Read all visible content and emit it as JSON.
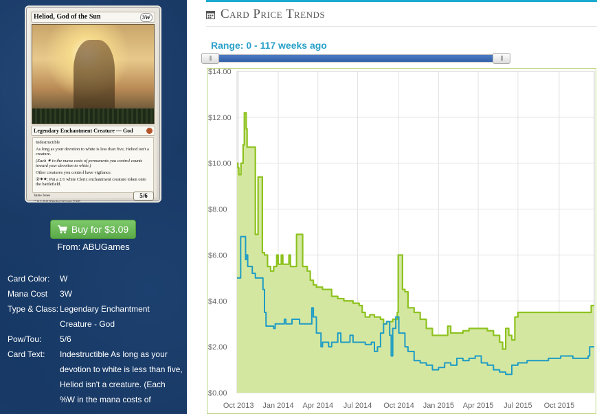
{
  "card": {
    "name": "Heliod, God of the Sun",
    "mana_symbols": "3W",
    "type_line": "Legendary Enchantment Creature — God",
    "rules": [
      "Indestructible",
      "As long as your devotion to white is less than five, Heliod isn't a creature.",
      "(Each ✷ in the mana costs of permanents you control counts toward your devotion to white.)",
      "Other creatures you control have vigilance.",
      "②✷✷: Put a 2/1 white Cleric enchantment creature token onto the battlefield."
    ],
    "power_toughness": "5/6",
    "artist": "Jaime Jones",
    "copyright": "™ & © 2013 Wizards of the Coast 17/249"
  },
  "buy": {
    "label": "Buy for $3.09",
    "icon": "shopping-cart-icon",
    "from_label": "From:",
    "vendor": "ABUGames"
  },
  "details": [
    {
      "label": "Card Color:",
      "value": "W"
    },
    {
      "label": "Mana Cost",
      "value": "3W"
    },
    {
      "label": "Type & Class:",
      "value": "Legendary Enchantment Creature - God"
    },
    {
      "label": "Pow/Tou:",
      "value": "5/6"
    },
    {
      "label": "Card Text:",
      "value": "Indestructible As long as your devotion to white is less than five, Heliod isn't a creature. (Each %W in the mana costs of"
    }
  ],
  "panel": {
    "title": "Card Price Trends",
    "icon": "calendar-icon",
    "accent_color": "#1aa9cf"
  },
  "range": {
    "label": "Range: 0 - 117 weeks ago",
    "min": 0,
    "max": 117,
    "selected_fraction": 1.0
  },
  "chart_data": {
    "type": "area",
    "title": "",
    "xlabel": "",
    "ylabel": "",
    "x_ticks": [
      "Oct 2013",
      "Jan 2014",
      "Apr 2014",
      "Jul 2014",
      "Oct 2014",
      "Jan 2015",
      "Apr 2015",
      "Jul 2015",
      "Oct 2015"
    ],
    "y_ticks": [
      "$0.00",
      "$2.00",
      "$4.00",
      "$6.00",
      "$8.00",
      "$10.00",
      "$12.00",
      "$14.00"
    ],
    "ylim": [
      0,
      14
    ],
    "xlim": [
      0,
      117
    ],
    "grid": true,
    "colors": {
      "series1": "#8dc21f",
      "series1_fill": "#d4e7a1",
      "series2": "#1e9cc4",
      "plot_border": "#b8d27a"
    },
    "series": [
      {
        "points": [
          [
            0,
            10.0
          ],
          [
            0.3,
            9.8
          ],
          [
            0.6,
            9.5
          ],
          [
            1.0,
            9.5
          ],
          [
            1.3,
            10.0
          ],
          [
            2.0,
            10.8
          ],
          [
            2.4,
            12.2
          ],
          [
            2.7,
            12.2
          ],
          [
            3.0,
            11.5
          ],
          [
            3.3,
            10.7
          ],
          [
            5.5,
            10.7
          ],
          [
            6.0,
            6.9
          ],
          [
            6.5,
            6.9
          ],
          [
            6.9,
            9.4
          ],
          [
            7.9,
            9.4
          ],
          [
            8.3,
            6.1
          ],
          [
            9.0,
            6.0
          ],
          [
            10.0,
            5.5
          ],
          [
            11.0,
            5.3
          ],
          [
            12.0,
            5.5
          ],
          [
            13.0,
            6.0
          ],
          [
            13.5,
            5.6
          ],
          [
            14.0,
            5.6
          ],
          [
            14.5,
            6.0
          ],
          [
            15.0,
            5.6
          ],
          [
            16.5,
            5.6
          ],
          [
            17.0,
            6.0
          ],
          [
            17.5,
            5.5
          ],
          [
            19.0,
            5.5
          ],
          [
            19.5,
            6.9
          ],
          [
            21.0,
            6.9
          ],
          [
            21.5,
            5.5
          ],
          [
            23.0,
            5.3
          ],
          [
            24.0,
            4.9
          ],
          [
            25.0,
            4.7
          ],
          [
            26.0,
            4.6
          ],
          [
            28.0,
            4.5
          ],
          [
            31.0,
            4.2
          ],
          [
            33.0,
            4.1
          ],
          [
            35.0,
            4.0
          ],
          [
            38.0,
            3.9
          ],
          [
            40.0,
            3.8
          ],
          [
            41.0,
            3.5
          ],
          [
            42.0,
            3.3
          ],
          [
            43.5,
            3.4
          ],
          [
            45.0,
            3.3
          ],
          [
            47.0,
            3.2
          ],
          [
            48.0,
            3.0
          ],
          [
            49.0,
            3.1
          ],
          [
            51.0,
            3.2
          ],
          [
            52.5,
            3.5
          ],
          [
            52.8,
            6.0
          ],
          [
            54.0,
            6.0
          ],
          [
            54.2,
            4.5
          ],
          [
            55.0,
            4.4
          ],
          [
            56.0,
            3.7
          ],
          [
            58.0,
            3.5
          ],
          [
            60.0,
            3.2
          ],
          [
            62.0,
            2.8
          ],
          [
            64.0,
            2.5
          ],
          [
            66.0,
            2.5
          ],
          [
            68.0,
            2.5
          ],
          [
            69.0,
            2.9
          ],
          [
            70.0,
            2.6
          ],
          [
            72.0,
            2.6
          ],
          [
            74.0,
            2.7
          ],
          [
            76.0,
            2.8
          ],
          [
            79.0,
            2.8
          ],
          [
            82.0,
            2.7
          ],
          [
            84.0,
            2.5
          ],
          [
            86.0,
            2.2
          ],
          [
            87.0,
            1.9
          ],
          [
            88.0,
            2.8
          ],
          [
            89.0,
            2.5
          ],
          [
            90.0,
            2.3
          ],
          [
            91.0,
            3.3
          ],
          [
            92.0,
            3.5
          ],
          [
            95.0,
            3.5
          ],
          [
            100.0,
            3.5
          ],
          [
            105.0,
            3.5
          ],
          [
            110.0,
            3.5
          ],
          [
            115.5,
            3.5
          ],
          [
            116.0,
            3.8
          ],
          [
            117.0,
            3.8
          ]
        ]
      },
      {
        "points": [
          [
            0,
            5.0
          ],
          [
            1.0,
            5.0
          ],
          [
            1.2,
            6.8
          ],
          [
            2.5,
            6.8
          ],
          [
            2.8,
            5.8
          ],
          [
            3.0,
            6.0
          ],
          [
            3.5,
            5.5
          ],
          [
            5.0,
            5.2
          ],
          [
            6.0,
            5.0
          ],
          [
            8.0,
            5.0
          ],
          [
            8.5,
            4.5
          ],
          [
            9.0,
            3.5
          ],
          [
            9.5,
            2.9
          ],
          [
            12.0,
            2.8
          ],
          [
            12.5,
            3.0
          ],
          [
            15.0,
            3.0
          ],
          [
            15.5,
            3.2
          ],
          [
            16.0,
            3.0
          ],
          [
            17.5,
            3.0
          ],
          [
            18.0,
            3.2
          ],
          [
            20.0,
            3.2
          ],
          [
            20.5,
            3.0
          ],
          [
            24.0,
            3.0
          ],
          [
            24.5,
            3.7
          ],
          [
            25.0,
            3.3
          ],
          [
            26.0,
            2.6
          ],
          [
            27.0,
            2.6
          ],
          [
            27.5,
            2.0
          ],
          [
            28.0,
            2.2
          ],
          [
            30.0,
            2.0
          ],
          [
            31.0,
            2.2
          ],
          [
            33.0,
            2.6
          ],
          [
            34.0,
            2.2
          ],
          [
            36.0,
            2.2
          ],
          [
            37.0,
            2.5
          ],
          [
            38.0,
            2.2
          ],
          [
            40.0,
            2.2
          ],
          [
            42.0,
            2.1
          ],
          [
            44.0,
            2.2
          ],
          [
            45.0,
            1.8
          ],
          [
            46.0,
            2.0
          ],
          [
            47.0,
            2.6
          ],
          [
            48.0,
            3.0
          ],
          [
            49.0,
            3.1
          ],
          [
            50.0,
            2.5
          ],
          [
            50.5,
            1.6
          ],
          [
            51.0,
            2.8
          ],
          [
            52.0,
            3.3
          ],
          [
            53.0,
            2.6
          ],
          [
            55.0,
            2.0
          ],
          [
            56.0,
            1.8
          ],
          [
            58.0,
            1.4
          ],
          [
            60.0,
            1.3
          ],
          [
            62.0,
            1.2
          ],
          [
            64.0,
            1.0
          ],
          [
            66.0,
            1.1
          ],
          [
            68.0,
            1.3
          ],
          [
            70.0,
            1.2
          ],
          [
            72.0,
            1.5
          ],
          [
            74.0,
            1.4
          ],
          [
            76.0,
            1.5
          ],
          [
            78.0,
            1.6
          ],
          [
            80.0,
            1.3
          ],
          [
            82.0,
            1.2
          ],
          [
            84.0,
            1.0
          ],
          [
            86.0,
            0.9
          ],
          [
            88.0,
            0.8
          ],
          [
            90.0,
            1.2
          ],
          [
            92.0,
            1.3
          ],
          [
            95.0,
            1.4
          ],
          [
            98.0,
            1.4
          ],
          [
            102.0,
            1.5
          ],
          [
            106.0,
            1.6
          ],
          [
            110.0,
            1.5
          ],
          [
            113.0,
            1.5
          ],
          [
            115.0,
            1.6
          ],
          [
            115.5,
            2.0
          ],
          [
            117.0,
            2.0
          ]
        ]
      }
    ]
  }
}
